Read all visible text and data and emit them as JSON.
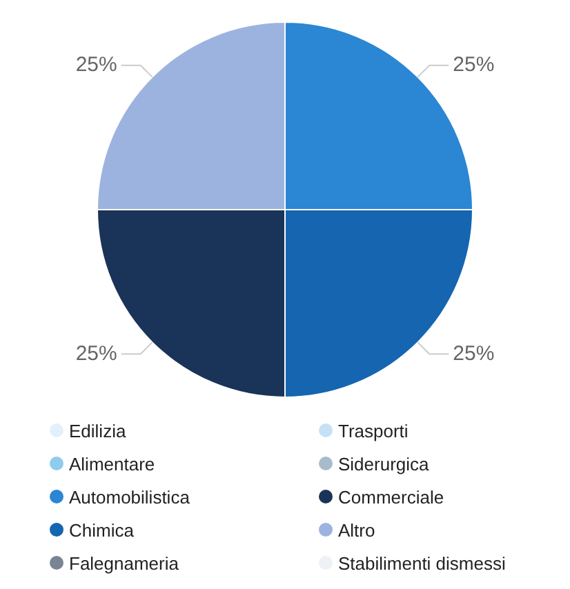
{
  "chart_data": {
    "type": "pie",
    "legend": "bottom",
    "categories": [
      "Edilizia",
      "Alimentare",
      "Automobilistica",
      "Chimica",
      "Falegnameria",
      "Trasporti",
      "Siderurgica",
      "Commerciale",
      "Altro",
      "Stabilimenti dismessi"
    ],
    "values": [
      0,
      0,
      25,
      25,
      0,
      0,
      0,
      25,
      25,
      0
    ],
    "value_labels": [
      null,
      null,
      "25%",
      "25%",
      null,
      null,
      null,
      "25%",
      "25%",
      null
    ],
    "colors": [
      "#e3f0fb",
      "#8ecbef",
      "#2b86d3",
      "#1565b0",
      "#7a8594",
      "#c5e1f7",
      "#a6bccb",
      "#1a3358",
      "#9db3df",
      "#eef1f5"
    ]
  }
}
